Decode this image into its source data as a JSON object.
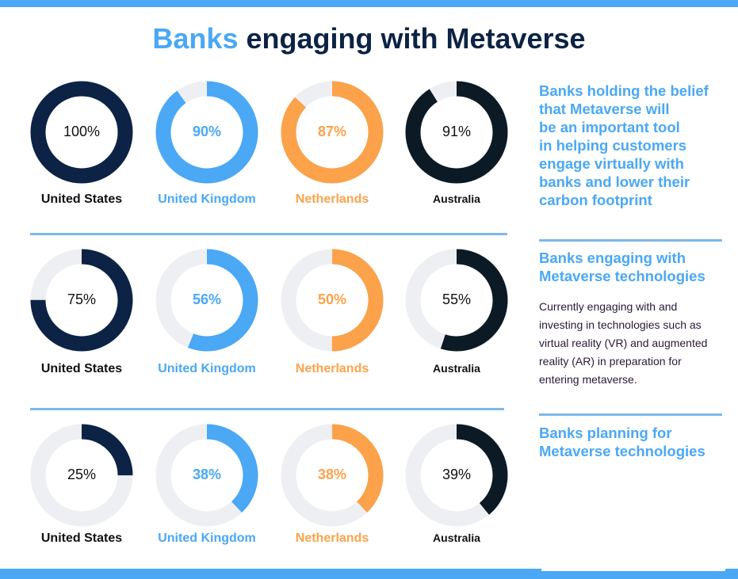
{
  "title": {
    "accent": "Banks",
    "rest": " engaging with Metaverse"
  },
  "colors": {
    "united_states": "#0d2345",
    "united_kingdom": "#4aa8f5",
    "netherlands": "#fba24b",
    "australia": "#0b1a24",
    "track": "#eeeff2",
    "accent": "#4aa8f5"
  },
  "sidebar": {
    "section1": {
      "lines": [
        "Banks holding the belief",
        "that Metaverse will",
        "be an important tool",
        "in helping customers",
        "engage virtually with",
        "banks and lower their",
        "carbon footprint"
      ]
    },
    "section2": {
      "lines": [
        "Banks engaging with",
        "Metaverse technologies"
      ],
      "desc_lines": [
        "Currently engaging with and",
        "investing in technologies such as",
        "virtual reality (VR) and augmented",
        "reality (AR) in preparation for",
        "entering metaverse."
      ]
    },
    "section3": {
      "lines": [
        "Banks planning for",
        "Metaverse technologies"
      ]
    }
  },
  "chart_data": {
    "type": "donut",
    "categories": [
      "United States",
      "United Kingdom",
      "Netherlands",
      "Australia"
    ],
    "series": [
      {
        "values": [
          100,
          90,
          87,
          91
        ],
        "labels": [
          "100%",
          "90%",
          "87%",
          "91%"
        ]
      },
      {
        "values": [
          75,
          56,
          50,
          55
        ],
        "labels": [
          "75%",
          "56%",
          "50%",
          "55%"
        ]
      },
      {
        "values": [
          25,
          38,
          38,
          39
        ],
        "labels": [
          "25%",
          "38%",
          "38%",
          "39%"
        ]
      }
    ]
  }
}
